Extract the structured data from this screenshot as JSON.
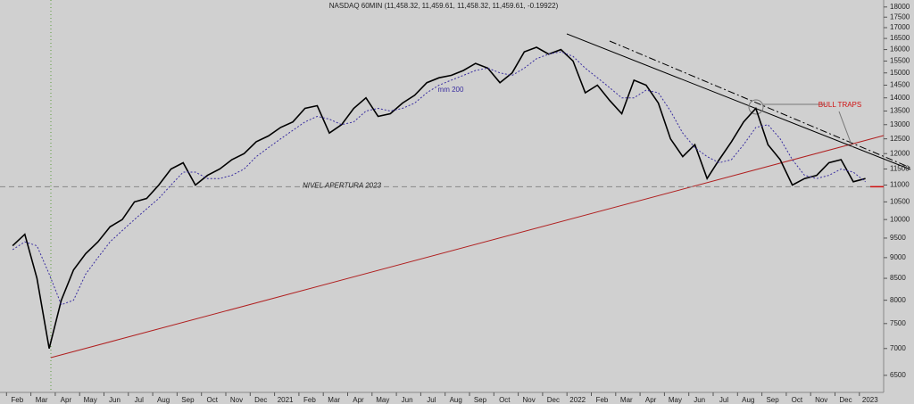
{
  "chart_data": {
    "type": "line",
    "title": "NASDAQ 60MIN (11,458.32, 11,459.61, 11,458.32, 11,459.61, -0.19922)",
    "categories": [
      "Feb",
      null,
      "Mar",
      null,
      "Apr",
      null,
      "May",
      null,
      "Jun",
      null,
      "Jul",
      null,
      "Aug",
      null,
      "Sep",
      null,
      "Oct",
      null,
      "Nov",
      null,
      "Dec",
      null,
      "2021",
      null,
      "Feb",
      null,
      "Mar",
      null,
      "Apr",
      null,
      "May",
      null,
      "Jun",
      null,
      "Jul",
      null,
      "Aug",
      null,
      "Sep",
      null,
      "Oct",
      null,
      "Nov",
      null,
      "Dec",
      null,
      "2022",
      null,
      "Feb",
      null,
      "Mar",
      null,
      "Apr",
      null,
      "May",
      null,
      "Jun",
      null,
      "Jul",
      null,
      "Aug",
      null,
      "Sep",
      null,
      "Oct",
      null,
      "Nov",
      null,
      "Dec",
      null,
      "2023"
    ],
    "series": [
      {
        "name": "NASDAQ",
        "color": "#000000",
        "values": [
          9300,
          9600,
          8500,
          7000,
          8000,
          8700,
          9100,
          9400,
          9800,
          10000,
          10500,
          10600,
          11000,
          11500,
          11700,
          11000,
          11300,
          11500,
          11800,
          12000,
          12400,
          12600,
          12900,
          13100,
          13600,
          13700,
          12700,
          13000,
          13600,
          14000,
          13300,
          13400,
          13800,
          14100,
          14600,
          14800,
          14900,
          15100,
          15400,
          15200,
          14600,
          15000,
          15900,
          16100,
          15800,
          16000,
          15500,
          14200,
          14500,
          13900,
          13400,
          14700,
          14500,
          13800,
          12500,
          11900,
          12300,
          11200,
          11800,
          12400,
          13100,
          13600,
          12300,
          11800,
          11000,
          11200,
          11300,
          11700,
          11800,
          11100,
          11200
        ]
      },
      {
        "name": "mm 200",
        "color": "#3a2ea0",
        "values": [
          9200,
          9400,
          9300,
          8600,
          7900,
          8000,
          8600,
          9000,
          9400,
          9700,
          10000,
          10300,
          10600,
          11000,
          11400,
          11400,
          11200,
          11200,
          11300,
          11500,
          11900,
          12200,
          12500,
          12800,
          13100,
          13300,
          13200,
          13000,
          13100,
          13500,
          13600,
          13500,
          13600,
          13800,
          14200,
          14500,
          14700,
          14900,
          15100,
          15200,
          15000,
          14900,
          15200,
          15600,
          15800,
          15900,
          15700,
          15200,
          14800,
          14400,
          14000,
          14000,
          14300,
          14200,
          13500,
          12700,
          12200,
          11900,
          11700,
          11800,
          12300,
          12900,
          13000,
          12500,
          11800,
          11300,
          11200,
          11300,
          11500,
          11400,
          11100
        ]
      }
    ],
    "ylim": [
      6200,
      18350
    ],
    "log_scale": true,
    "yticks": [
      6500,
      7000,
      7500,
      8000,
      8500,
      9000,
      9500,
      10000,
      10500,
      11000,
      11500,
      12000,
      12500,
      13000,
      13500,
      14000,
      14500,
      15000,
      15500,
      16000,
      16500,
      17000,
      17500,
      18000
    ],
    "annotations": [
      {
        "text": "NIVEL APERTURA 2023",
        "y": 10950
      },
      {
        "text": "BULL TRAPS"
      }
    ]
  }
}
